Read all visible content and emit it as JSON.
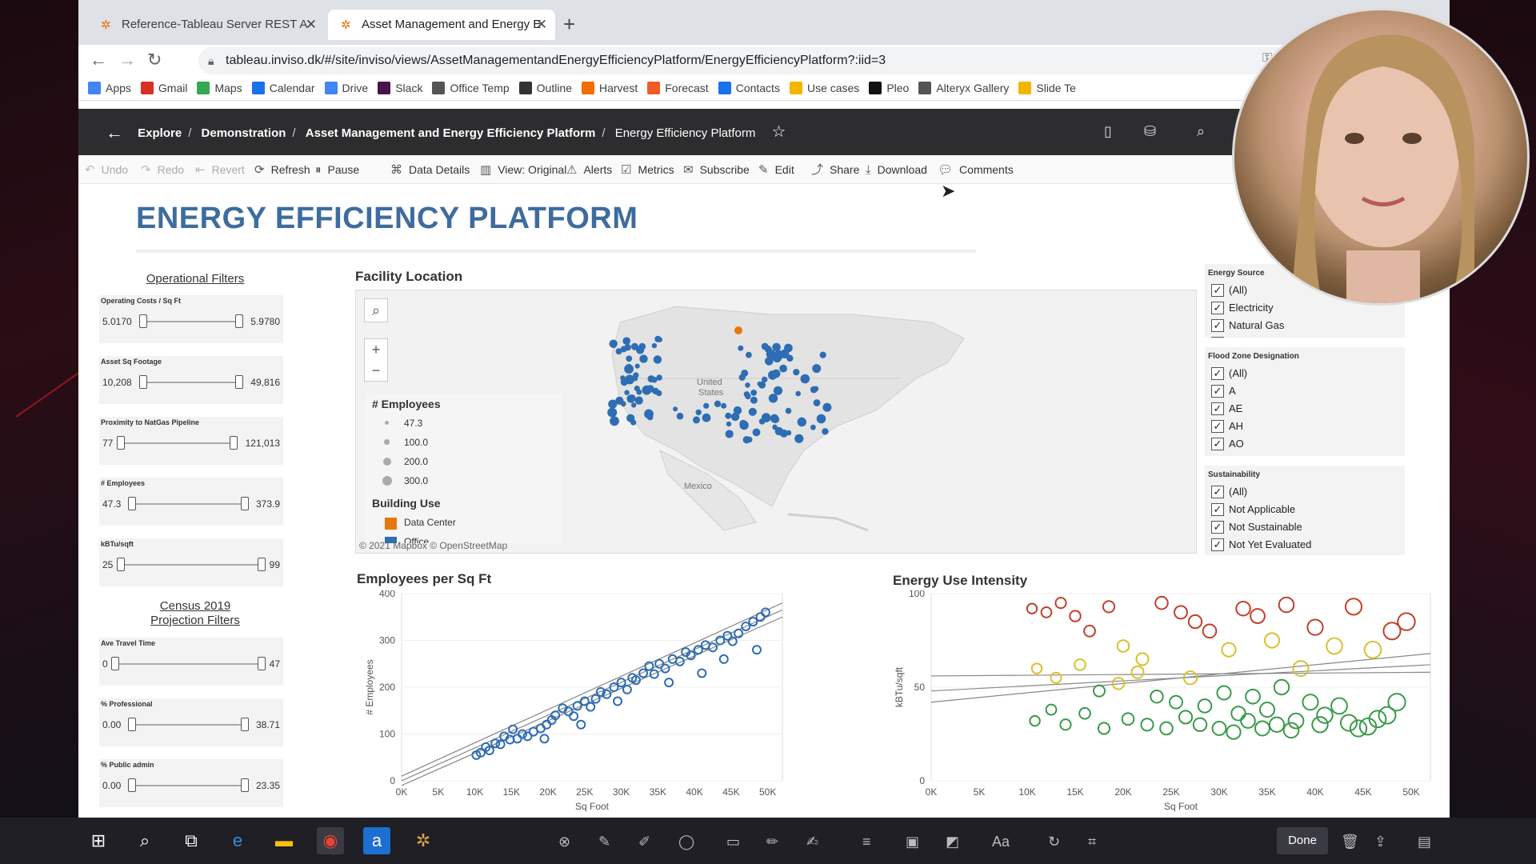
{
  "browser": {
    "tabs": [
      {
        "title": "Reference-Tableau Server REST A"
      },
      {
        "title": "Asset Management and Energy E"
      }
    ],
    "url": "tableau.inviso.dk/#/site/inviso/views/AssetManagementandEnergyEfficiencyPlatform/EnergyEfficiencyPlatform?:iid=3",
    "bookmarks": [
      {
        "label": "Apps",
        "icon": "apps-grid-icon",
        "color": "#4285f4"
      },
      {
        "label": "Gmail",
        "icon": "gmail-icon",
        "color": "#d93025"
      },
      {
        "label": "Maps",
        "icon": "maps-pin-icon",
        "color": "#34a853"
      },
      {
        "label": "Calendar",
        "icon": "calendar-icon",
        "color": "#1a73e8"
      },
      {
        "label": "Drive",
        "icon": "google-g-icon",
        "color": "#4285f4"
      },
      {
        "label": "Slack",
        "icon": "slack-icon",
        "color": "#4a154b"
      },
      {
        "label": "Office Temp",
        "icon": "globe-icon",
        "color": "#555555"
      },
      {
        "label": "Outline",
        "icon": "outline-icon",
        "color": "#333333"
      },
      {
        "label": "Harvest",
        "icon": "harvest-icon",
        "color": "#f36c00"
      },
      {
        "label": "Forecast",
        "icon": "forecast-icon",
        "color": "#f05a28"
      },
      {
        "label": "Contacts",
        "icon": "contacts-icon",
        "color": "#1a73e8"
      },
      {
        "label": "Use cases",
        "icon": "folder-icon",
        "color": "#f4b400"
      },
      {
        "label": "Pleo",
        "icon": "pleo-icon",
        "color": "#111111"
      },
      {
        "label": "Alteryx Gallery",
        "icon": "globe-icon",
        "color": "#555555"
      },
      {
        "label": "Slide Te",
        "icon": "folder-icon",
        "color": "#f4b400"
      }
    ]
  },
  "breadcrumbs": [
    "Explore",
    "Demonstration",
    "Asset Management and Energy Efficiency Platform",
    "Energy Efficiency Platform"
  ],
  "toolbar": [
    "Undo",
    "Redo",
    "Revert",
    "Refresh",
    "Pause",
    "Data Details",
    "View: Original",
    "Alerts",
    "Metrics",
    "Subscribe",
    "Edit",
    "Share",
    "Download",
    "Comments"
  ],
  "dashboard": {
    "title": "ENERGY EFFICIENCY PLATFORM",
    "operational_filters_title": "Operational Filters",
    "census_filters_title_1": "Census 2019",
    "census_filters_title_2": "Projection Filters",
    "sliders": [
      {
        "label": "Operating Costs / Sq Ft",
        "min": "5.0170",
        "max": "5.9780"
      },
      {
        "label": "Asset Sq Footage",
        "min": "10,208",
        "max": "49,816"
      },
      {
        "label": "Proximity to NatGas Pipeline",
        "min": "77",
        "max": "121,013"
      },
      {
        "label": "# Employees",
        "min": "47.3",
        "max": "373.9"
      },
      {
        "label": "kBTu/sqft",
        "min": "25",
        "max": "99"
      }
    ],
    "census_sliders": [
      {
        "label": "Ave Travel Time",
        "min": "0",
        "max": "47"
      },
      {
        "label": "% Professional",
        "min": "0.00",
        "max": "38.71"
      },
      {
        "label": "% Public admin",
        "min": "0.00",
        "max": "23.35"
      }
    ],
    "map": {
      "title": "Facility Location",
      "legend_employees_title": "# Employees",
      "legend_employees": [
        "47.3",
        "100.0",
        "200.0",
        "300.0"
      ],
      "legend_building_title": "Building Use",
      "legend_building": [
        {
          "label": "Data Center",
          "color": "#e8760e"
        },
        {
          "label": "Office",
          "color": "#2e6db3"
        }
      ],
      "label_us_1": "United",
      "label_us_2": "States",
      "label_mexico": "Mexico",
      "credit": "© 2021 Mapbox  © OpenStreetMap"
    },
    "energy_source": {
      "title": "Energy Source",
      "options": [
        "(All)",
        "Electricity",
        "Natural Gas",
        "Petroleum"
      ]
    },
    "flood_zone": {
      "title": "Flood Zone Designation",
      "options": [
        "(All)",
        "A",
        "AE",
        "AH",
        "AO"
      ]
    },
    "sustainability": {
      "title": "Sustainability",
      "options": [
        "(All)",
        "Not Applicable",
        "Not Sustainable",
        "Not Yet Evaluated"
      ]
    }
  },
  "chart_data": [
    {
      "type": "scatter",
      "title": "Employees per Sq Ft",
      "xlabel": "Sq Foot",
      "ylabel": "# Employees",
      "xlim": [
        0,
        52000
      ],
      "ylim": [
        0,
        400
      ],
      "x_ticks": [
        "0K",
        "5K",
        "10K",
        "15K",
        "20K",
        "25K",
        "30K",
        "35K",
        "40K",
        "45K",
        "50K"
      ],
      "y_ticks": [
        "0",
        "100",
        "200",
        "300",
        "400"
      ],
      "color": "#2e6db3",
      "points": [
        [
          10200,
          55
        ],
        [
          10800,
          60
        ],
        [
          11500,
          72
        ],
        [
          12000,
          65
        ],
        [
          12800,
          80
        ],
        [
          13500,
          78
        ],
        [
          14000,
          95
        ],
        [
          14800,
          88
        ],
        [
          15200,
          110
        ],
        [
          15800,
          90
        ],
        [
          16500,
          100
        ],
        [
          17200,
          95
        ],
        [
          18000,
          105
        ],
        [
          19000,
          112
        ],
        [
          19800,
          120
        ],
        [
          20500,
          130
        ],
        [
          21000,
          140
        ],
        [
          22000,
          155
        ],
        [
          22800,
          148
        ],
        [
          23500,
          138
        ],
        [
          24000,
          160
        ],
        [
          25000,
          170
        ],
        [
          25800,
          158
        ],
        [
          26500,
          175
        ],
        [
          27200,
          190
        ],
        [
          28000,
          185
        ],
        [
          29000,
          200
        ],
        [
          30000,
          210
        ],
        [
          30800,
          195
        ],
        [
          31500,
          220
        ],
        [
          32000,
          215
        ],
        [
          33000,
          230
        ],
        [
          33800,
          245
        ],
        [
          34500,
          228
        ],
        [
          35200,
          250
        ],
        [
          36000,
          240
        ],
        [
          37000,
          260
        ],
        [
          38000,
          255
        ],
        [
          38800,
          275
        ],
        [
          39500,
          268
        ],
        [
          40500,
          280
        ],
        [
          41500,
          290
        ],
        [
          42500,
          285
        ],
        [
          43500,
          300
        ],
        [
          44500,
          310
        ],
        [
          45200,
          298
        ],
        [
          46000,
          315
        ],
        [
          47000,
          330
        ],
        [
          48000,
          340
        ],
        [
          49000,
          350
        ],
        [
          49700,
          360
        ],
        [
          36500,
          210
        ],
        [
          41000,
          230
        ],
        [
          29500,
          170
        ],
        [
          24500,
          120
        ],
        [
          19500,
          90
        ],
        [
          44000,
          260
        ],
        [
          48500,
          280
        ]
      ]
    },
    {
      "type": "scatter",
      "title": "Energy Use Intensity",
      "xlabel": "Sq Foot",
      "ylabel": "kBTu/sqft",
      "xlim": [
        0,
        52000
      ],
      "ylim": [
        0,
        100
      ],
      "x_ticks": [
        "0K",
        "5K",
        "10K",
        "15K",
        "20K",
        "25K",
        "30K",
        "35K",
        "40K",
        "45K",
        "50K"
      ],
      "y_ticks": [
        "0",
        "50",
        "100"
      ],
      "points": [
        [
          10500,
          92
        ],
        [
          12000,
          90
        ],
        [
          13500,
          95
        ],
        [
          15000,
          88
        ],
        [
          16500,
          80
        ],
        [
          18500,
          93
        ],
        [
          20000,
          72
        ],
        [
          22000,
          65
        ],
        [
          24000,
          95
        ],
        [
          26000,
          90
        ],
        [
          27500,
          85
        ],
        [
          29000,
          80
        ],
        [
          31000,
          70
        ],
        [
          32500,
          92
        ],
        [
          34000,
          88
        ],
        [
          35500,
          75
        ],
        [
          37000,
          94
        ],
        [
          38500,
          60
        ],
        [
          40000,
          82
        ],
        [
          42000,
          72
        ],
        [
          44000,
          93
        ],
        [
          46000,
          70
        ],
        [
          48000,
          80
        ],
        [
          49500,
          85
        ],
        [
          11000,
          60
        ],
        [
          13000,
          55
        ],
        [
          15500,
          62
        ],
        [
          17500,
          48
        ],
        [
          19500,
          52
        ],
        [
          21500,
          58
        ],
        [
          23500,
          45
        ],
        [
          25500,
          42
        ],
        [
          27000,
          55
        ],
        [
          28500,
          40
        ],
        [
          30500,
          47
        ],
        [
          32000,
          36
        ],
        [
          33500,
          45
        ],
        [
          35000,
          38
        ],
        [
          36500,
          50
        ],
        [
          38000,
          32
        ],
        [
          39500,
          42
        ],
        [
          41000,
          35
        ],
        [
          42500,
          40
        ],
        [
          44500,
          28
        ],
        [
          46500,
          33
        ],
        [
          48500,
          42
        ],
        [
          10800,
          32
        ],
        [
          12500,
          38
        ],
        [
          14000,
          30
        ],
        [
          16000,
          36
        ],
        [
          18000,
          28
        ],
        [
          20500,
          33
        ],
        [
          22500,
          30
        ],
        [
          24500,
          28
        ],
        [
          26500,
          34
        ],
        [
          28000,
          30
        ],
        [
          30000,
          28
        ],
        [
          31500,
          26
        ],
        [
          33000,
          32
        ],
        [
          34500,
          28
        ],
        [
          36000,
          30
        ],
        [
          37500,
          27
        ],
        [
          40500,
          30
        ],
        [
          43500,
          31
        ],
        [
          45500,
          29
        ],
        [
          47500,
          35
        ]
      ],
      "scale_colors": [
        "#3a9a4a",
        "#d8c030",
        "#c0402c"
      ]
    }
  ],
  "taskbar": {
    "done_label": "Done"
  }
}
